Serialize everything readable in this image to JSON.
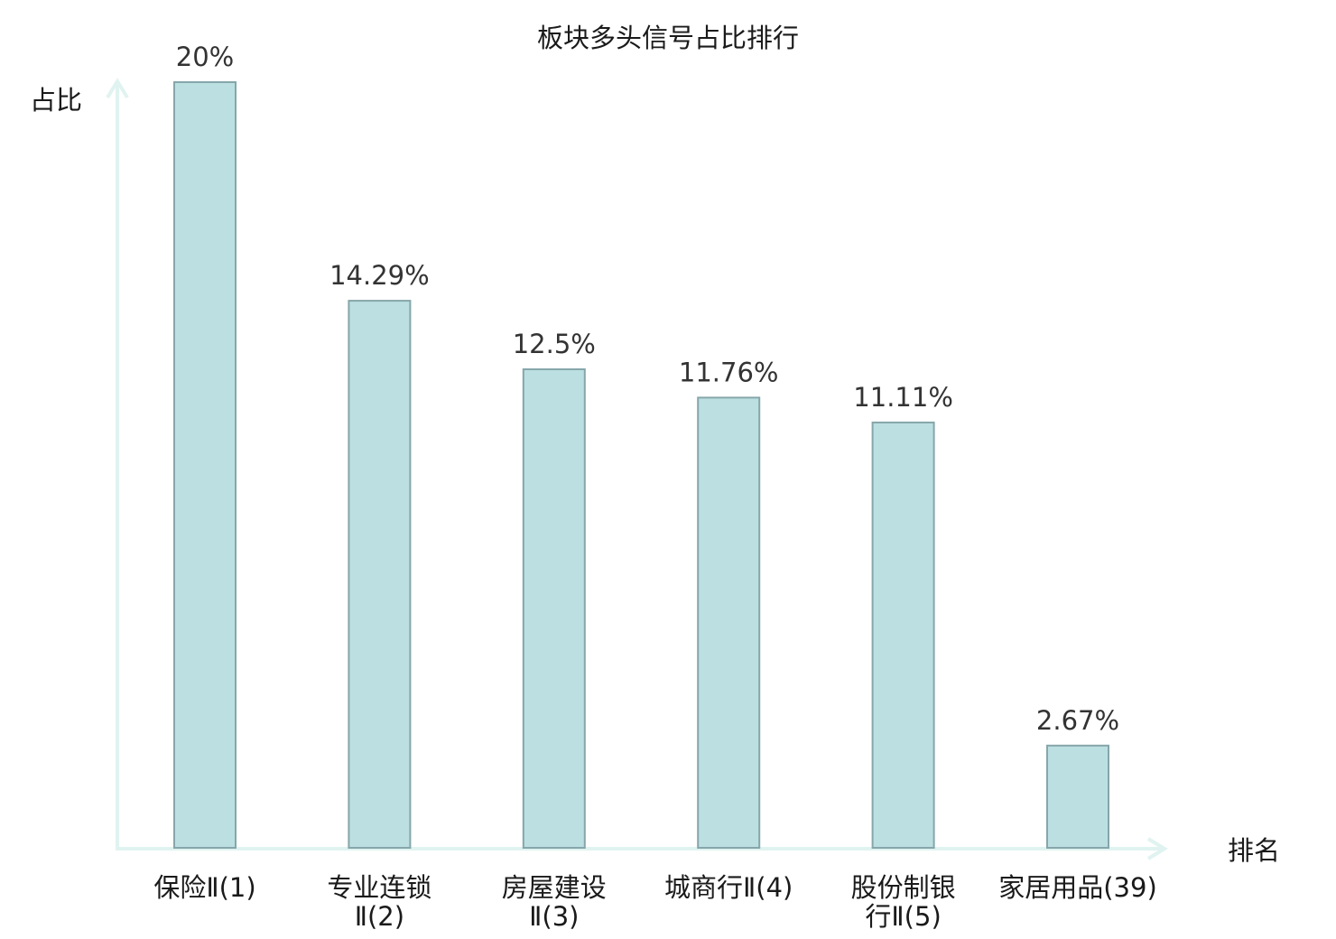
{
  "chart_data": {
    "type": "bar",
    "title": "板块多头信号占比排行",
    "ylabel": "占比",
    "xlabel": "排名",
    "ylim": [
      0,
      20
    ],
    "grid": false,
    "categories": [
      [
        "保险Ⅱ(1)"
      ],
      [
        "专业连锁",
        "Ⅱ(2)"
      ],
      [
        "房屋建设",
        "Ⅱ(3)"
      ],
      [
        "城商行Ⅱ(4)"
      ],
      [
        "股份制银",
        "行Ⅱ(5)"
      ],
      [
        "家居用品(39)"
      ]
    ],
    "values": [
      20,
      14.29,
      12.5,
      11.76,
      11.11,
      2.67
    ],
    "value_labels": [
      "20%",
      "14.29%",
      "12.5%",
      "11.76%",
      "11.11%",
      "2.67%"
    ],
    "highlight_index": 5,
    "colors": {
      "bar_fill": "#bce0e2",
      "bar_stroke": "#86a6aa",
      "axis": "#e0f3f0",
      "highlight_text": "#dd2222",
      "text": "#1a1a1a"
    }
  }
}
